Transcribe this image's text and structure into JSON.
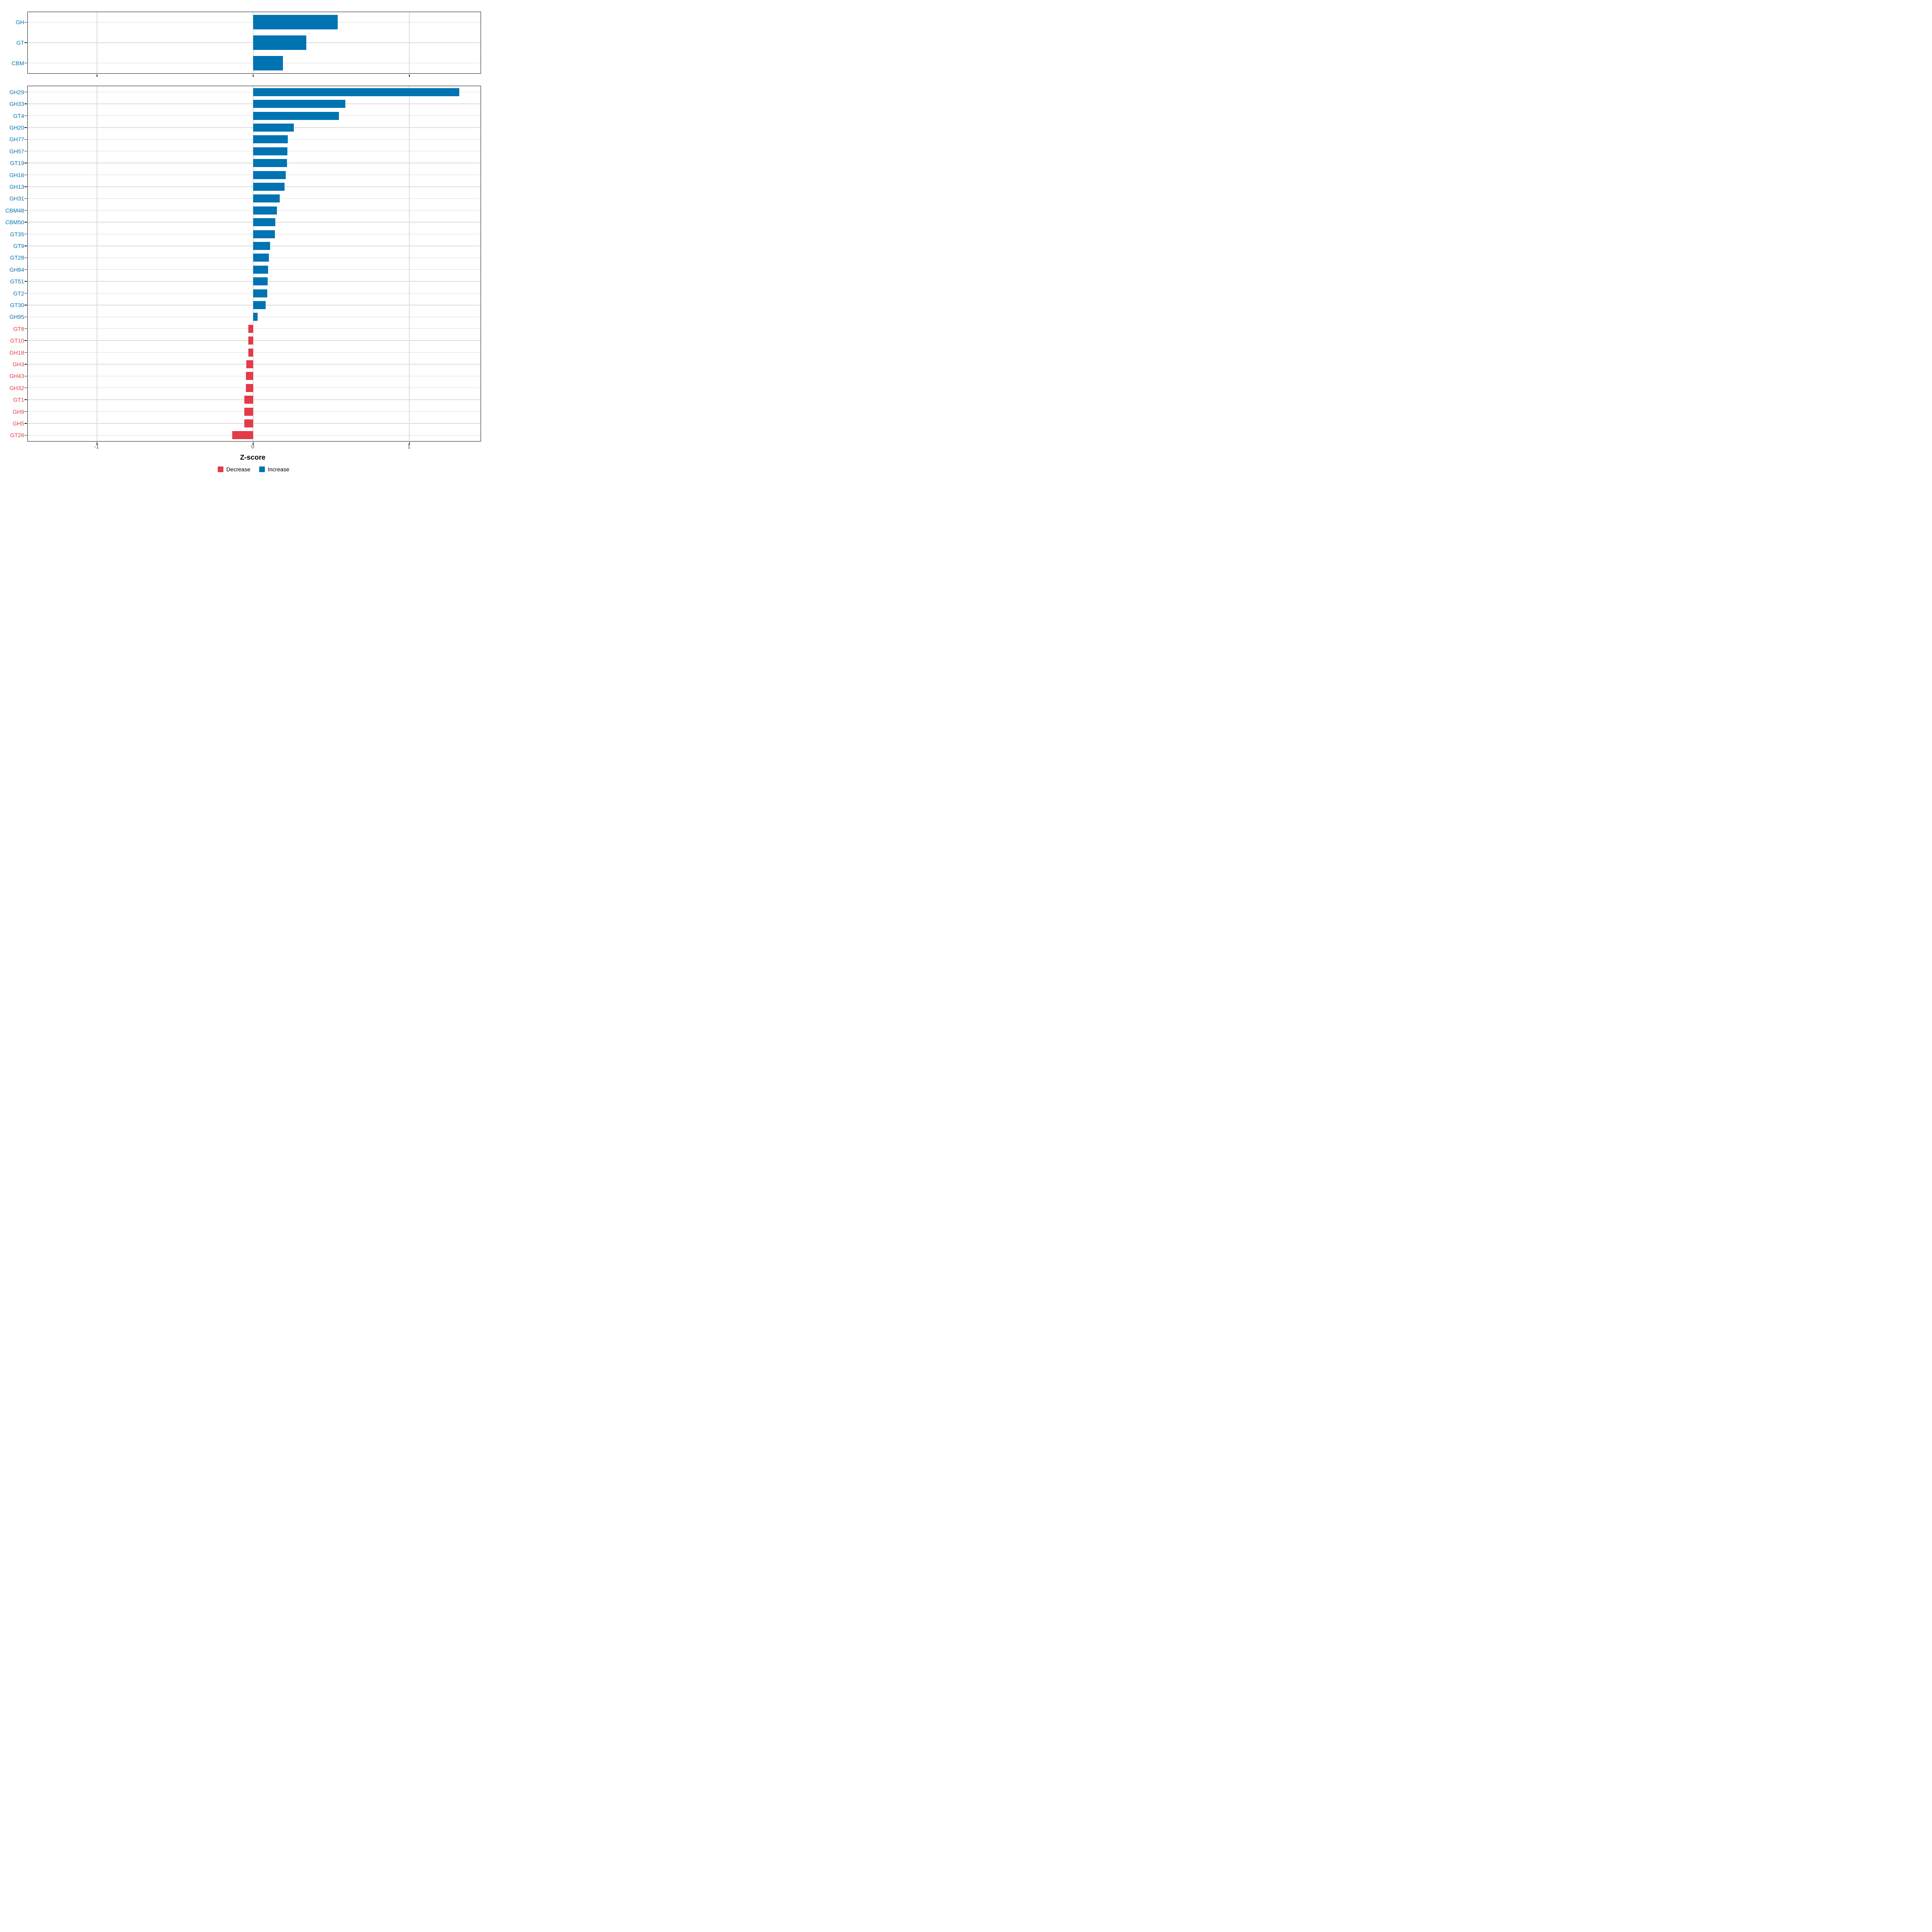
{
  "axis": {
    "title": "Z-score",
    "tick_labels": [
      "-1",
      "0",
      "1"
    ],
    "tick_values": [
      -1,
      0,
      1
    ],
    "range": [
      -1.44,
      1.46
    ],
    "tick_label_color": "#4d4d4d"
  },
  "colors": {
    "increase": "#0073B2",
    "decrease": "#E33B47",
    "gridline": "#dddddd",
    "panel_border": "#1a1a1a"
  },
  "legend": {
    "items": [
      {
        "label": "Decrease",
        "key": "decrease"
      },
      {
        "label": "Increase",
        "key": "increase"
      }
    ]
  },
  "chart_data": [
    {
      "type": "bar",
      "orientation": "horizontal",
      "panel": "top",
      "categories": [
        "GH",
        "GT",
        "CBM"
      ],
      "values": [
        0.54,
        0.34,
        0.19
      ],
      "xlabel": "",
      "ylabel": "",
      "xlim": [
        -1.44,
        1.46
      ],
      "grid": "major",
      "legend_position": "none",
      "color_rule": "blue #0073B2 when value >= 0 (Increase), red #E33B47 when value < 0 (Decrease); y labels colored the same"
    },
    {
      "type": "bar",
      "orientation": "horizontal",
      "panel": "bottom",
      "categories": [
        "GH29",
        "GH33",
        "GT4",
        "GH20",
        "GH77",
        "GH57",
        "GT19",
        "GH16",
        "GH13",
        "GH31",
        "CBM48",
        "CBM50",
        "GT35",
        "GT9",
        "GT28",
        "GH84",
        "GT51",
        "GT2",
        "GT30",
        "GH95",
        "GT8",
        "GT10",
        "GH18",
        "GH3",
        "GH43",
        "GH32",
        "GT1",
        "GH9",
        "GH5",
        "GT26"
      ],
      "values": [
        1.32,
        0.59,
        0.55,
        0.26,
        0.222,
        0.219,
        0.216,
        0.21,
        0.201,
        0.169,
        0.151,
        0.141,
        0.139,
        0.108,
        0.1,
        0.096,
        0.092,
        0.09,
        0.08,
        0.028,
        -0.031,
        -0.032,
        -0.032,
        -0.044,
        -0.046,
        -0.046,
        -0.056,
        -0.057,
        -0.057,
        -0.134
      ],
      "xlabel": "Z-score",
      "ylabel": "",
      "xlim": [
        -1.44,
        1.46
      ],
      "grid": "major",
      "legend_position": "bottom",
      "color_rule": "blue #0073B2 when value >= 0 (Increase), red #E33B47 when value < 0 (Decrease); y labels colored the same"
    }
  ]
}
